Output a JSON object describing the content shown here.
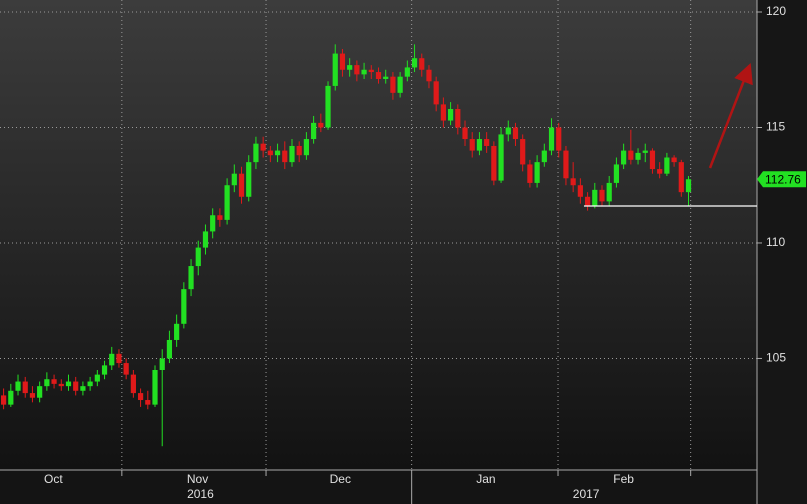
{
  "chart_data": {
    "type": "candlestick",
    "up_color": "#22e022",
    "down_color": "#e01a1a",
    "xlim": [
      0,
      105
    ],
    "ylim": [
      100.17,
      120.52
    ],
    "yticks": [
      105,
      110,
      115,
      120
    ],
    "grid": true,
    "xticks": [
      {
        "value": 7.4,
        "label": "Oct"
      },
      {
        "value": 27.4,
        "label": "Nov"
      },
      {
        "value": 47.2,
        "label": "Dec"
      },
      {
        "value": 67.4,
        "label": "Jan"
      },
      {
        "value": 86.5,
        "label": "Feb"
      }
    ],
    "year_ticks": [
      {
        "value": 27.8,
        "label": "2016"
      },
      {
        "value": 81.3,
        "label": "2017"
      }
    ],
    "xgrid": [
      16.9,
      36.9,
      57.1,
      77.4,
      95.8
    ],
    "support_level": 111.6,
    "candles": [
      [
        103.4,
        103.7,
        102.8,
        103.0
      ],
      [
        103.0,
        103.9,
        102.9,
        103.6
      ],
      [
        103.6,
        104.3,
        103.4,
        104.0
      ],
      [
        104.0,
        104.2,
        103.3,
        103.5
      ],
      [
        103.5,
        103.8,
        103.1,
        103.3
      ],
      [
        103.3,
        104.0,
        103.1,
        103.8
      ],
      [
        103.8,
        104.4,
        103.6,
        104.1
      ],
      [
        104.1,
        104.3,
        103.7,
        103.9
      ],
      [
        103.9,
        104.1,
        103.6,
        103.8
      ],
      [
        103.8,
        104.3,
        103.6,
        104.0
      ],
      [
        104.0,
        104.2,
        103.4,
        103.6
      ],
      [
        103.6,
        104.0,
        103.4,
        103.8
      ],
      [
        103.8,
        104.2,
        103.6,
        104.0
      ],
      [
        104.0,
        104.5,
        103.8,
        104.3
      ],
      [
        104.3,
        104.9,
        104.1,
        104.7
      ],
      [
        104.7,
        105.5,
        104.5,
        105.2
      ],
      [
        105.2,
        105.4,
        104.6,
        104.8
      ],
      [
        104.8,
        105.0,
        104.1,
        104.3
      ],
      [
        104.3,
        104.5,
        103.3,
        103.5
      ],
      [
        103.5,
        103.7,
        102.9,
        103.2
      ],
      [
        103.2,
        103.6,
        102.8,
        103.0
      ],
      [
        103.0,
        104.7,
        102.9,
        104.5
      ],
      [
        104.5,
        105.4,
        101.2,
        105.0
      ],
      [
        105.0,
        106.2,
        104.8,
        105.8
      ],
      [
        105.8,
        106.9,
        105.5,
        106.5
      ],
      [
        106.5,
        108.3,
        106.3,
        108.0
      ],
      [
        108.0,
        109.3,
        107.7,
        109.0
      ],
      [
        109.0,
        110.1,
        108.6,
        109.8
      ],
      [
        109.8,
        110.8,
        109.5,
        110.5
      ],
      [
        110.5,
        111.5,
        110.2,
        111.2
      ],
      [
        111.2,
        111.5,
        110.7,
        111.0
      ],
      [
        111.0,
        112.8,
        110.8,
        112.5
      ],
      [
        112.5,
        113.4,
        112.2,
        113.0
      ],
      [
        113.0,
        113.3,
        111.7,
        112.0
      ],
      [
        112.0,
        113.8,
        111.8,
        113.5
      ],
      [
        113.5,
        114.6,
        113.2,
        114.3
      ],
      [
        114.3,
        114.6,
        113.7,
        114.0
      ],
      [
        114.0,
        114.2,
        113.5,
        113.8
      ],
      [
        113.8,
        114.3,
        113.5,
        114.0
      ],
      [
        114.0,
        114.4,
        113.2,
        113.5
      ],
      [
        113.5,
        114.5,
        113.3,
        114.2
      ],
      [
        114.2,
        114.4,
        113.5,
        113.8
      ],
      [
        113.8,
        114.8,
        113.6,
        114.5
      ],
      [
        114.5,
        115.5,
        114.3,
        115.2
      ],
      [
        115.2,
        115.6,
        114.8,
        115.0
      ],
      [
        115.0,
        117.0,
        114.9,
        116.8
      ],
      [
        116.8,
        118.6,
        116.6,
        118.2
      ],
      [
        118.2,
        118.4,
        117.2,
        117.5
      ],
      [
        117.5,
        118.0,
        117.2,
        117.7
      ],
      [
        117.7,
        117.9,
        117.0,
        117.3
      ],
      [
        117.3,
        117.8,
        117.1,
        117.5
      ],
      [
        117.5,
        117.7,
        117.1,
        117.4
      ],
      [
        117.4,
        117.6,
        116.9,
        117.1
      ],
      [
        117.1,
        117.5,
        116.9,
        117.2
      ],
      [
        117.2,
        117.4,
        116.2,
        116.5
      ],
      [
        116.5,
        117.4,
        116.3,
        117.2
      ],
      [
        117.2,
        117.9,
        117.0,
        117.6
      ],
      [
        117.6,
        118.6,
        117.4,
        118.0
      ],
      [
        118.0,
        118.2,
        117.2,
        117.5
      ],
      [
        117.5,
        117.7,
        116.7,
        117.0
      ],
      [
        117.0,
        117.2,
        115.7,
        116.0
      ],
      [
        116.0,
        116.3,
        115.0,
        115.3
      ],
      [
        115.3,
        116.1,
        115.1,
        115.8
      ],
      [
        115.8,
        116.0,
        114.7,
        115.0
      ],
      [
        115.0,
        115.3,
        114.2,
        114.5
      ],
      [
        114.5,
        114.8,
        113.7,
        114.0
      ],
      [
        114.0,
        114.8,
        113.8,
        114.5
      ],
      [
        114.5,
        114.8,
        113.9,
        114.2
      ],
      [
        114.2,
        114.4,
        112.5,
        112.7
      ],
      [
        112.7,
        115.0,
        112.6,
        114.7
      ],
      [
        114.7,
        115.3,
        114.4,
        115.0
      ],
      [
        115.0,
        115.2,
        114.2,
        114.5
      ],
      [
        114.5,
        114.7,
        113.1,
        113.4
      ],
      [
        113.4,
        113.6,
        112.4,
        112.6
      ],
      [
        112.6,
        113.8,
        112.4,
        113.5
      ],
      [
        113.5,
        114.3,
        113.3,
        114.0
      ],
      [
        114.0,
        115.4,
        113.8,
        115.0
      ],
      [
        115.0,
        115.2,
        113.7,
        114.0
      ],
      [
        114.0,
        114.2,
        112.5,
        112.8
      ],
      [
        112.8,
        113.5,
        112.2,
        112.5
      ],
      [
        112.5,
        112.8,
        111.7,
        112.0
      ],
      [
        112.0,
        112.2,
        111.4,
        111.6
      ],
      [
        111.6,
        112.6,
        111.5,
        112.3
      ],
      [
        112.3,
        112.5,
        111.6,
        111.8
      ],
      [
        111.8,
        112.9,
        111.6,
        112.6
      ],
      [
        112.6,
        113.7,
        112.4,
        113.4
      ],
      [
        113.4,
        114.3,
        113.2,
        114.0
      ],
      [
        114.0,
        114.9,
        113.4,
        113.6
      ],
      [
        113.6,
        114.1,
        113.4,
        113.9
      ],
      [
        113.9,
        114.3,
        113.5,
        114.0
      ],
      [
        114.0,
        114.1,
        113.0,
        113.2
      ],
      [
        113.2,
        113.5,
        112.8,
        113.0
      ],
      [
        113.0,
        113.9,
        112.9,
        113.7
      ],
      [
        113.7,
        113.8,
        113.3,
        113.5
      ],
      [
        113.5,
        113.6,
        112.0,
        112.2
      ],
      [
        112.2,
        112.9,
        111.6,
        112.76
      ]
    ]
  }
}
